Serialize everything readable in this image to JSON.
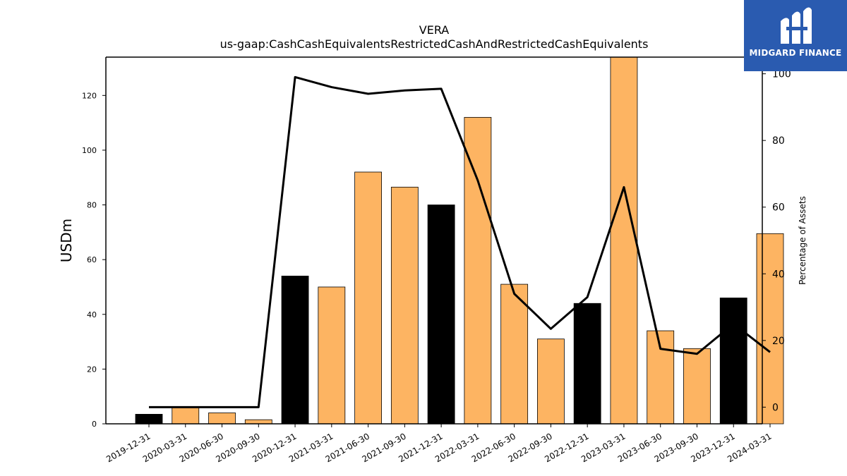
{
  "chart_data": {
    "type": "bar+line",
    "title": "VERA",
    "subtitle": "us-gaap:CashCashEquivalentsRestrictedCashAndRestrictedCashEquivalents",
    "ylabel": "USDm",
    "y2label": "Percentage of Assets",
    "ylim": [
      0,
      134
    ],
    "y2lim": [
      -5,
      105
    ],
    "yticks": [
      0,
      20,
      40,
      60,
      80,
      100,
      120
    ],
    "y2ticks": [
      0,
      20,
      40,
      60,
      80,
      100
    ],
    "categories": [
      "2019-12-31",
      "2020-03-31",
      "2020-06-30",
      "2020-09-30",
      "2020-12-31",
      "2021-03-31",
      "2021-06-30",
      "2021-09-30",
      "2021-12-31",
      "2022-03-31",
      "2022-06-30",
      "2022-09-30",
      "2022-12-31",
      "2023-03-31",
      "2023-06-30",
      "2023-09-30",
      "2023-12-31",
      "2024-03-31"
    ],
    "bars": {
      "values": [
        3.5,
        6,
        4,
        1.5,
        54,
        50,
        92,
        86.5,
        80,
        112,
        51,
        31,
        44,
        134,
        34,
        27.5,
        46,
        69.5
      ],
      "colors": [
        "#000000",
        "#fdb462",
        "#fdb462",
        "#fdb462",
        "#000000",
        "#fdb462",
        "#fdb462",
        "#fdb462",
        "#000000",
        "#fdb462",
        "#fdb462",
        "#fdb462",
        "#000000",
        "#fdb462",
        "#fdb462",
        "#fdb462",
        "#000000",
        "#fdb462"
      ]
    },
    "line": {
      "values": [
        0,
        0,
        0,
        0,
        99,
        96,
        94,
        95,
        95.5,
        68,
        34,
        23.5,
        33,
        66,
        17.5,
        16,
        25,
        16.5
      ],
      "color": "#000000"
    },
    "grid": false
  },
  "logo": {
    "text": "MIDGARD FINANCE",
    "color": "#2a5bb0"
  }
}
